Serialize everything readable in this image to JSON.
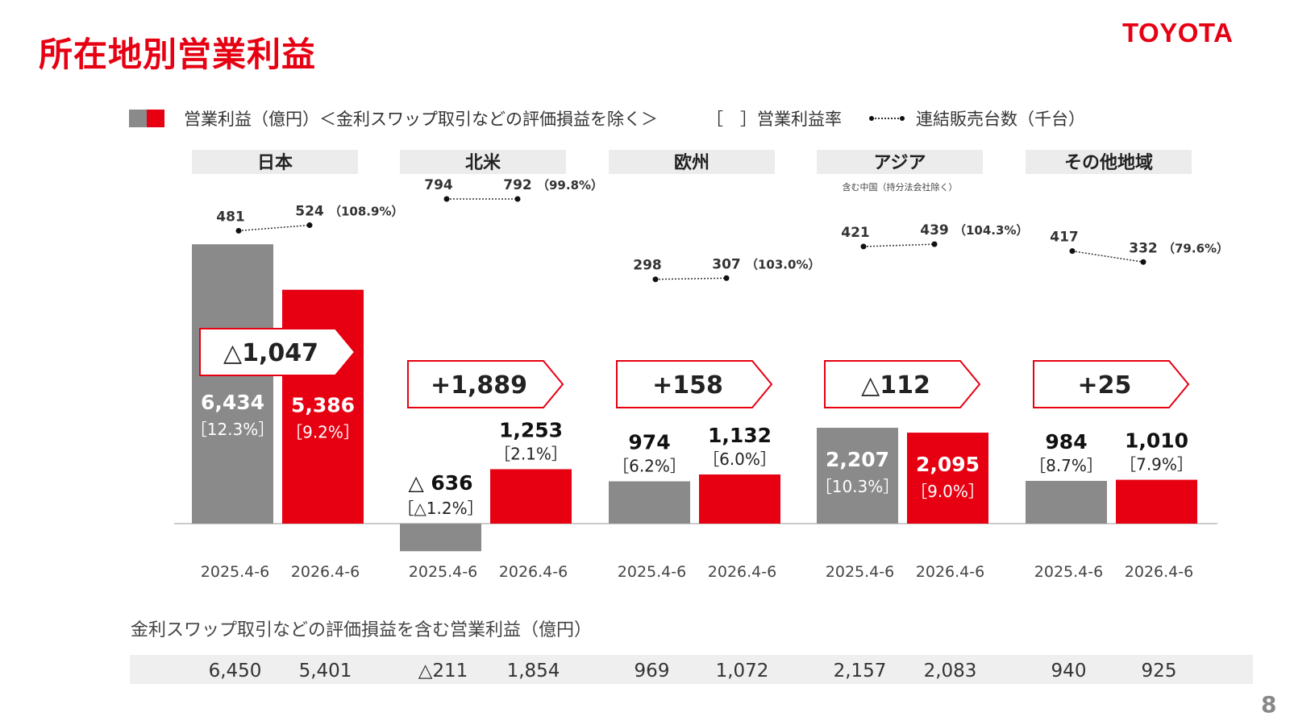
{
  "page": {
    "title": "所在地別営業利益",
    "logo": "TOYOTA",
    "page_number": "8"
  },
  "legend": {
    "operating_income": "営業利益（億円）＜金利スワップ取引などの評価損益を除く＞",
    "margin": "［　］営業利益率",
    "units": "連結販売台数（千台）"
  },
  "colors": {
    "prior_period": "#8a8a8a",
    "current_period": "#e60012",
    "accent": "#e60012"
  },
  "chart_data": {
    "type": "bar",
    "periods": [
      "2025.4-6",
      "2026.4-6"
    ],
    "regions": [
      {
        "name": "日本",
        "note": "",
        "operating_income": [
          6434,
          5386
        ],
        "income_labels": [
          "6,434",
          "5,386"
        ],
        "margins": [
          "［12.3%］",
          "［9.2%］"
        ],
        "change": "△1,047",
        "units": [
          481,
          524
        ],
        "unit_labels": [
          "481",
          "524"
        ],
        "unit_ratio": "（108.9%）",
        "incl_swap": [
          "6,450",
          "5,401"
        ]
      },
      {
        "name": "北米",
        "note": "",
        "operating_income": [
          -636,
          1253
        ],
        "income_labels": [
          "△ 636",
          "1,253"
        ],
        "margins": [
          "［△1.2%］",
          "［2.1%］"
        ],
        "change": "+1,889",
        "units": [
          794,
          792
        ],
        "unit_labels": [
          "794",
          "792"
        ],
        "unit_ratio": "（99.8%）",
        "incl_swap": [
          "△211",
          "1,854"
        ]
      },
      {
        "name": "欧州",
        "note": "",
        "operating_income": [
          974,
          1132
        ],
        "income_labels": [
          "974",
          "1,132"
        ],
        "margins": [
          "［6.2%］",
          "［6.0%］"
        ],
        "change": "+158",
        "units": [
          298,
          307
        ],
        "unit_labels": [
          "298",
          "307"
        ],
        "unit_ratio": "（103.0%）",
        "incl_swap": [
          "969",
          "1,072"
        ]
      },
      {
        "name": "アジア",
        "note": "含む中国（持分法会社除く）",
        "operating_income": [
          2207,
          2095
        ],
        "income_labels": [
          "2,207",
          "2,095"
        ],
        "margins": [
          "［10.3%］",
          "［9.0%］"
        ],
        "change": "△112",
        "units": [
          421,
          439
        ],
        "unit_labels": [
          "421",
          "439"
        ],
        "unit_ratio": "（104.3%）",
        "incl_swap": [
          "2,157",
          "2,083"
        ]
      },
      {
        "name": "その他地域",
        "note": "",
        "operating_income": [
          984,
          1010
        ],
        "income_labels": [
          "984",
          "1,010"
        ],
        "margins": [
          "［8.7%］",
          "［7.9%］"
        ],
        "change": "+25",
        "units": [
          417,
          332
        ],
        "unit_labels": [
          "417",
          "332"
        ],
        "unit_ratio": "（79.6%）",
        "incl_swap": [
          "940",
          "925"
        ]
      }
    ]
  },
  "bottom_table": {
    "label": "金利スワップ取引などの評価損益を含む営業利益（億円）"
  }
}
